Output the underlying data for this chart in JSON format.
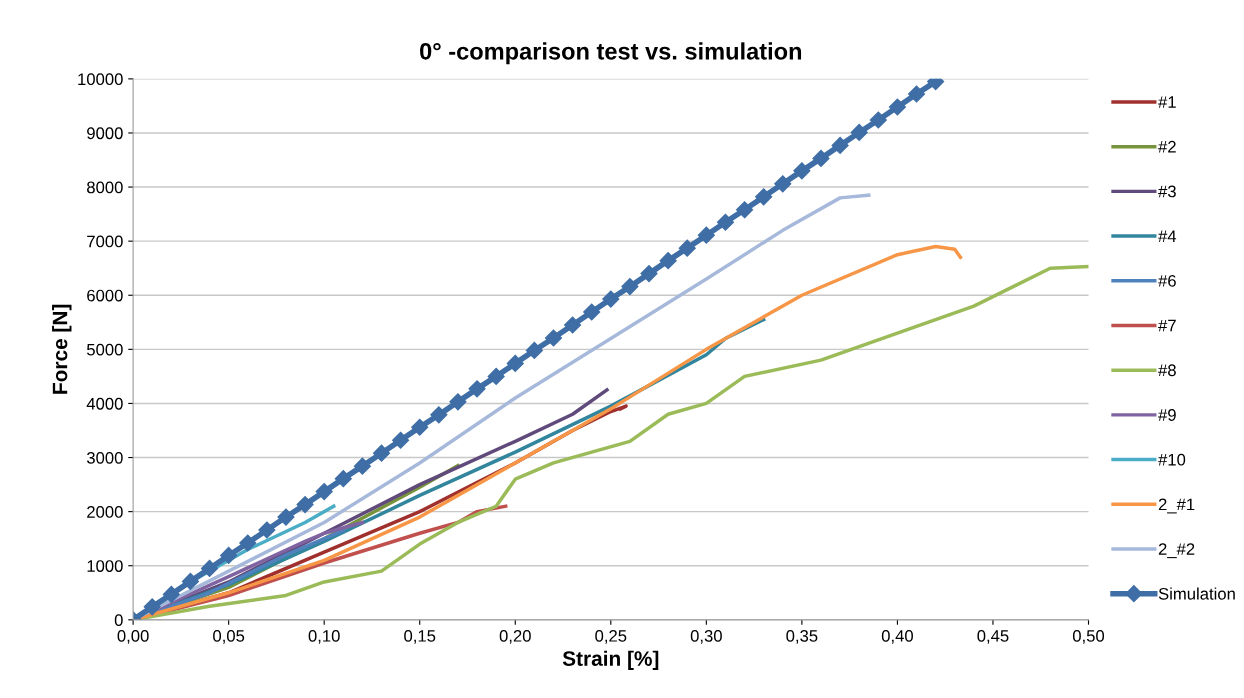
{
  "chart_data": {
    "type": "line",
    "title": "0° -comparison test vs. simulation",
    "xlabel": "Strain [%]",
    "ylabel": "Force [N]",
    "xlim": [
      0,
      0.5
    ],
    "ylim": [
      0,
      10000
    ],
    "xticks": [
      {
        "value": 0,
        "label": "0,00"
      },
      {
        "value": 0.05,
        "label": "0,05"
      },
      {
        "value": 0.1,
        "label": "0,10"
      },
      {
        "value": 0.15,
        "label": "0,15"
      },
      {
        "value": 0.2,
        "label": "0,20"
      },
      {
        "value": 0.25,
        "label": "0,25"
      },
      {
        "value": 0.3,
        "label": "0,30"
      },
      {
        "value": 0.35,
        "label": "0,35"
      },
      {
        "value": 0.4,
        "label": "0,40"
      },
      {
        "value": 0.45,
        "label": "0,45"
      },
      {
        "value": 0.5,
        "label": "0,50"
      }
    ],
    "yticks": [
      0,
      1000,
      2000,
      3000,
      4000,
      5000,
      6000,
      7000,
      8000,
      9000,
      10000
    ],
    "grid": "y",
    "legend": "right",
    "series": [
      {
        "name": "#1",
        "color": "#a0302d",
        "x": [
          0,
          0.05,
          0.1,
          0.15,
          0.2,
          0.23,
          0.25,
          0.258,
          0.255
        ],
        "values": [
          0,
          500,
          1250,
          2000,
          2900,
          3500,
          3850,
          3950,
          3900
        ]
      },
      {
        "name": "#2",
        "color": "#77933c",
        "x": [
          0,
          0.05,
          0.1,
          0.15,
          0.17
        ],
        "values": [
          0,
          600,
          1500,
          2450,
          2850
        ]
      },
      {
        "name": "#3",
        "color": "#604a7b",
        "x": [
          0,
          0.05,
          0.1,
          0.15,
          0.2,
          0.23,
          0.248
        ],
        "values": [
          0,
          700,
          1600,
          2500,
          3300,
          3800,
          4250
        ]
      },
      {
        "name": "#4",
        "color": "#31859c",
        "x": [
          0,
          0.05,
          0.1,
          0.15,
          0.2,
          0.25,
          0.3,
          0.31,
          0.33
        ],
        "values": [
          0,
          650,
          1450,
          2300,
          3100,
          3950,
          4900,
          5200,
          5550
        ]
      },
      {
        "name": "#6",
        "color": "#4f81bd",
        "x": [
          0,
          0.04,
          0.08,
          0.11
        ],
        "values": [
          0,
          500,
          1200,
          1650
        ]
      },
      {
        "name": "#7",
        "color": "#c0504d",
        "x": [
          0,
          0.05,
          0.1,
          0.15,
          0.17,
          0.18,
          0.195
        ],
        "values": [
          0,
          450,
          1050,
          1600,
          1800,
          2000,
          2100
        ]
      },
      {
        "name": "#8",
        "color": "#9bbb59",
        "x": [
          0,
          0.04,
          0.08,
          0.1,
          0.13,
          0.15,
          0.17,
          0.19,
          0.2,
          0.22,
          0.26,
          0.28,
          0.3,
          0.32,
          0.36,
          0.4,
          0.44,
          0.48,
          0.5
        ],
        "values": [
          0,
          250,
          450,
          700,
          900,
          1400,
          1800,
          2100,
          2600,
          2900,
          3300,
          3800,
          4000,
          4500,
          4800,
          5300,
          5800,
          6500,
          6530
        ]
      },
      {
        "name": "#9",
        "color": "#8064a2",
        "x": [
          0,
          0.05,
          0.09,
          0.1,
          0.12
        ],
        "values": [
          0,
          800,
          1450,
          1600,
          1800
        ]
      },
      {
        "name": "#10",
        "color": "#4bacc6",
        "x": [
          0,
          0.03,
          0.06,
          0.09,
          0.105
        ],
        "values": [
          0,
          700,
          1300,
          1800,
          2100
        ]
      },
      {
        "name": "2_#1",
        "color": "#f79646",
        "x": [
          0,
          0.05,
          0.1,
          0.15,
          0.2,
          0.25,
          0.3,
          0.35,
          0.4,
          0.42,
          0.43,
          0.433
        ],
        "values": [
          0,
          500,
          1100,
          1900,
          2900,
          3900,
          5000,
          6000,
          6750,
          6900,
          6850,
          6700
        ]
      },
      {
        "name": "2_#2",
        "color": "#a6b9db",
        "x": [
          0,
          0.05,
          0.1,
          0.15,
          0.2,
          0.25,
          0.3,
          0.34,
          0.37,
          0.385
        ],
        "values": [
          0,
          900,
          1800,
          2900,
          4100,
          5200,
          6300,
          7200,
          7800,
          7850
        ]
      },
      {
        "name": "Simulation",
        "color": "#3f6ea6",
        "marker": "diamond",
        "x": [
          0,
          0.01,
          0.02,
          0.03,
          0.04,
          0.05,
          0.06,
          0.07,
          0.08,
          0.09,
          0.1,
          0.11,
          0.12,
          0.13,
          0.14,
          0.15,
          0.16,
          0.17,
          0.18,
          0.19,
          0.2,
          0.21,
          0.22,
          0.23,
          0.24,
          0.25,
          0.26,
          0.27,
          0.28,
          0.29,
          0.3,
          0.31,
          0.32,
          0.33,
          0.34,
          0.35,
          0.36,
          0.37,
          0.38,
          0.39,
          0.4,
          0.41,
          0.42
        ],
        "values": [
          0,
          240,
          470,
          710,
          950,
          1190,
          1420,
          1660,
          1900,
          2130,
          2370,
          2610,
          2840,
          3080,
          3320,
          3560,
          3790,
          4030,
          4270,
          4500,
          4740,
          4980,
          5210,
          5450,
          5690,
          5930,
          6160,
          6400,
          6640,
          6870,
          7110,
          7350,
          7580,
          7820,
          8060,
          8300,
          8530,
          8770,
          9010,
          9240,
          9480,
          9720,
          9950
        ]
      }
    ]
  }
}
